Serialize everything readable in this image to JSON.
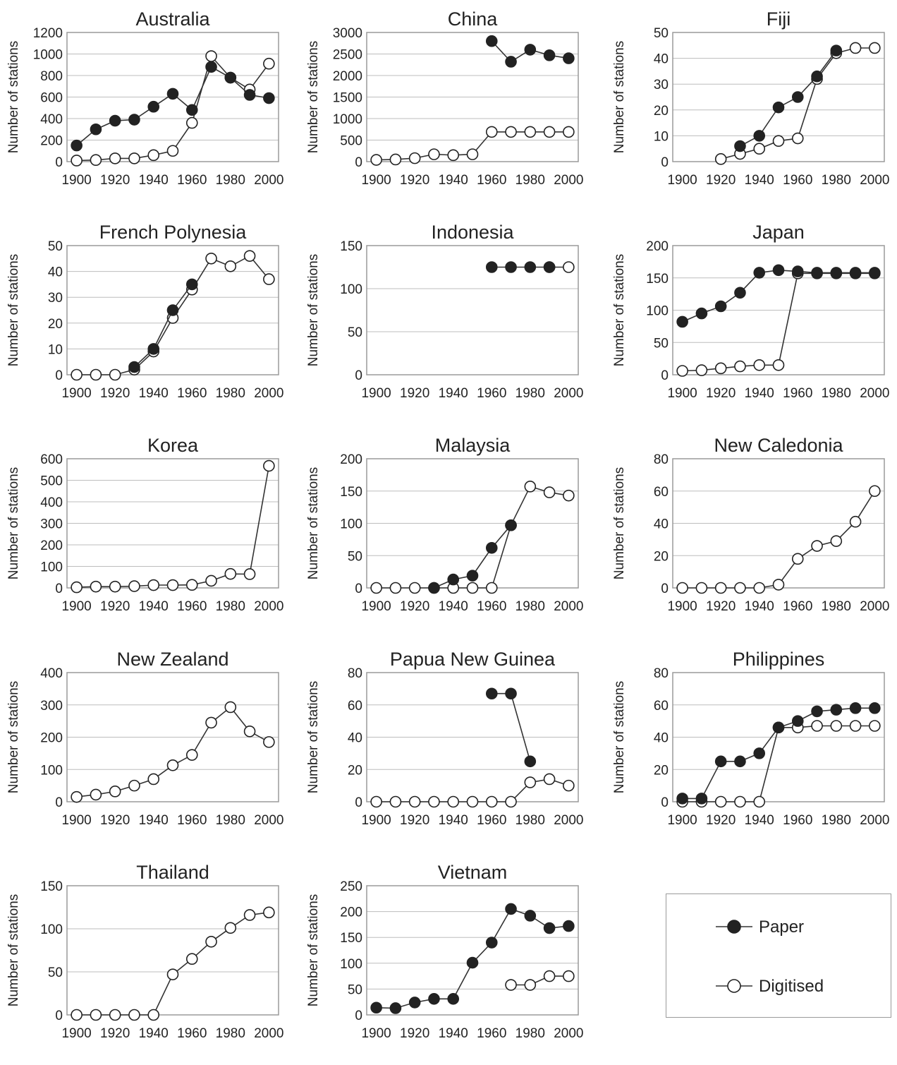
{
  "figure": {
    "ylabel": "Number of stations",
    "colors": {
      "paper": "#222222",
      "digitised": "#ffffff",
      "line": "#333333",
      "grid": "#bdbdbd",
      "frame": "#9a9a9a"
    }
  },
  "legend": {
    "paper_label": "Paper",
    "digitised_label": "Digitised"
  },
  "chart_data": [
    {
      "type": "line",
      "title": "Australia",
      "xlabel": "",
      "ylabel": "Number of stations",
      "xticks": [
        1900,
        1920,
        1940,
        1960,
        1980,
        2000
      ],
      "xlim": [
        1895,
        2005
      ],
      "yticks": [
        0,
        200,
        400,
        600,
        800,
        1000,
        1200
      ],
      "ylim": [
        0,
        1200
      ],
      "series": [
        {
          "name": "Paper",
          "style": "filled",
          "x": [
            1900,
            1910,
            1920,
            1930,
            1940,
            1950,
            1960,
            1970,
            1980,
            1990,
            2000
          ],
          "y": [
            150,
            300,
            380,
            390,
            510,
            630,
            480,
            880,
            780,
            620,
            590
          ]
        },
        {
          "name": "Digitised",
          "style": "open",
          "x": [
            1900,
            1910,
            1920,
            1930,
            1940,
            1950,
            1960,
            1970,
            1980,
            1990,
            2000
          ],
          "y": [
            10,
            15,
            30,
            30,
            60,
            100,
            360,
            980,
            780,
            670,
            910
          ]
        }
      ]
    },
    {
      "type": "line",
      "title": "China",
      "xlabel": "",
      "ylabel": "Number of stations",
      "xticks": [
        1900,
        1920,
        1940,
        1960,
        1980,
        2000
      ],
      "xlim": [
        1895,
        2005
      ],
      "yticks": [
        0,
        500,
        1000,
        1500,
        2000,
        2500,
        3000
      ],
      "ylim": [
        0,
        3000
      ],
      "series": [
        {
          "name": "Paper",
          "style": "filled",
          "x": [
            1960,
            1970,
            1980,
            1990,
            2000
          ],
          "y": [
            2800,
            2320,
            2600,
            2470,
            2400
          ]
        },
        {
          "name": "Digitised",
          "style": "open",
          "x": [
            1900,
            1910,
            1920,
            1930,
            1940,
            1950,
            1960,
            1970,
            1980,
            1990,
            2000
          ],
          "y": [
            40,
            50,
            80,
            170,
            150,
            170,
            690,
            690,
            690,
            690,
            690
          ]
        }
      ]
    },
    {
      "type": "line",
      "title": "Fiji",
      "xlabel": "",
      "ylabel": "Number of stations",
      "xticks": [
        1900,
        1920,
        1940,
        1960,
        1980,
        2000
      ],
      "xlim": [
        1895,
        2005
      ],
      "yticks": [
        0,
        10,
        20,
        30,
        40,
        50
      ],
      "ylim": [
        0,
        50
      ],
      "series": [
        {
          "name": "Paper",
          "style": "filled",
          "x": [
            1930,
            1940,
            1950,
            1960,
            1970,
            1980
          ],
          "y": [
            6,
            10,
            21,
            25,
            33,
            43
          ]
        },
        {
          "name": "Digitised",
          "style": "open",
          "x": [
            1920,
            1930,
            1940,
            1950,
            1960,
            1970,
            1980,
            1990,
            2000
          ],
          "y": [
            1,
            3,
            5,
            8,
            9,
            32,
            42,
            44,
            44
          ]
        }
      ]
    },
    {
      "type": "line",
      "title": "French Polynesia",
      "xlabel": "",
      "ylabel": "Number of stations",
      "xticks": [
        1900,
        1920,
        1940,
        1960,
        1980,
        2000
      ],
      "xlim": [
        1895,
        2005
      ],
      "yticks": [
        0,
        10,
        20,
        30,
        40,
        50
      ],
      "ylim": [
        0,
        50
      ],
      "series": [
        {
          "name": "Paper",
          "style": "filled",
          "x": [
            1930,
            1940,
            1950,
            1960
          ],
          "y": [
            3,
            10,
            25,
            35
          ]
        },
        {
          "name": "Digitised",
          "style": "open",
          "x": [
            1900,
            1910,
            1920,
            1930,
            1940,
            1950,
            1960,
            1970,
            1980,
            1990,
            2000
          ],
          "y": [
            0,
            0,
            0,
            2,
            9,
            22,
            33,
            45,
            42,
            46,
            37
          ]
        }
      ]
    },
    {
      "type": "line",
      "title": "Indonesia",
      "xlabel": "",
      "ylabel": "Number of stations",
      "xticks": [
        1900,
        1920,
        1940,
        1960,
        1980,
        2000
      ],
      "xlim": [
        1895,
        2005
      ],
      "yticks": [
        0,
        50,
        100,
        150
      ],
      "ylim": [
        0,
        150
      ],
      "series": [
        {
          "name": "Paper",
          "style": "filled",
          "x": [
            1960,
            1970,
            1980,
            1990
          ],
          "y": [
            125,
            125,
            125,
            125
          ]
        },
        {
          "name": "Digitised",
          "style": "open",
          "x": [
            1990,
            2000
          ],
          "y": [
            125,
            125
          ]
        }
      ]
    },
    {
      "type": "line",
      "title": "Japan",
      "xlabel": "",
      "ylabel": "Number of stations",
      "xticks": [
        1900,
        1920,
        1940,
        1960,
        1980,
        2000
      ],
      "xlim": [
        1895,
        2005
      ],
      "yticks": [
        0,
        50,
        100,
        150,
        200
      ],
      "ylim": [
        0,
        200
      ],
      "series": [
        {
          "name": "Paper",
          "style": "filled",
          "x": [
            1900,
            1910,
            1920,
            1930,
            1940,
            1950,
            1960,
            1970,
            1980,
            1990,
            2000
          ],
          "y": [
            82,
            95,
            106,
            127,
            158,
            162,
            160,
            158,
            158,
            158,
            158
          ]
        },
        {
          "name": "Digitised",
          "style": "open",
          "x": [
            1900,
            1910,
            1920,
            1930,
            1940,
            1950,
            1960,
            1970,
            1980,
            1990,
            2000
          ],
          "y": [
            6,
            7,
            10,
            13,
            15,
            15,
            157,
            157,
            157,
            157,
            157
          ]
        }
      ]
    },
    {
      "type": "line",
      "title": "Korea",
      "xlabel": "",
      "ylabel": "Number of stations",
      "xticks": [
        1900,
        1920,
        1940,
        1960,
        1980,
        2000
      ],
      "xlim": [
        1895,
        2005
      ],
      "yticks": [
        0,
        100,
        200,
        300,
        400,
        500,
        600
      ],
      "ylim": [
        0,
        600
      ],
      "series": [
        {
          "name": "Digitised",
          "style": "open",
          "x": [
            1900,
            1910,
            1920,
            1930,
            1940,
            1950,
            1960,
            1970,
            1980,
            1990,
            2000
          ],
          "y": [
            3,
            6,
            6,
            8,
            13,
            13,
            14,
            33,
            65,
            64,
            567
          ]
        }
      ]
    },
    {
      "type": "line",
      "title": "Malaysia",
      "xlabel": "",
      "ylabel": "Number of stations",
      "xticks": [
        1900,
        1920,
        1940,
        1960,
        1980,
        2000
      ],
      "xlim": [
        1895,
        2005
      ],
      "yticks": [
        0,
        50,
        100,
        150,
        200
      ],
      "ylim": [
        0,
        200
      ],
      "series": [
        {
          "name": "Paper",
          "style": "filled",
          "x": [
            1930,
            1940,
            1950,
            1960,
            1970
          ],
          "y": [
            0,
            13,
            19,
            62,
            97
          ]
        },
        {
          "name": "Digitised",
          "style": "open",
          "x": [
            1900,
            1910,
            1920,
            1930,
            1940,
            1950,
            1960,
            1970,
            1980,
            1990,
            2000
          ],
          "y": [
            0,
            0,
            0,
            0,
            0,
            0,
            0,
            97,
            157,
            148,
            143
          ]
        }
      ]
    },
    {
      "type": "line",
      "title": "New Caledonia",
      "xlabel": "",
      "ylabel": "Number of stations",
      "xticks": [
        1900,
        1920,
        1940,
        1960,
        1980,
        2000
      ],
      "xlim": [
        1895,
        2005
      ],
      "yticks": [
        0,
        20,
        40,
        60,
        80
      ],
      "ylim": [
        0,
        80
      ],
      "series": [
        {
          "name": "Digitised",
          "style": "open",
          "x": [
            1900,
            1910,
            1920,
            1930,
            1940,
            1950,
            1960,
            1970,
            1980,
            1990,
            2000
          ],
          "y": [
            0,
            0,
            0,
            0,
            0,
            2,
            18,
            26,
            29,
            41,
            60
          ]
        }
      ]
    },
    {
      "type": "line",
      "title": "New Zealand",
      "xlabel": "",
      "ylabel": "Number of stations",
      "xticks": [
        1900,
        1920,
        1940,
        1960,
        1980,
        2000
      ],
      "xlim": [
        1895,
        2005
      ],
      "yticks": [
        0,
        100,
        200,
        300,
        400
      ],
      "ylim": [
        0,
        400
      ],
      "series": [
        {
          "name": "Digitised",
          "style": "open",
          "x": [
            1900,
            1910,
            1920,
            1930,
            1940,
            1950,
            1960,
            1970,
            1980,
            1990,
            2000
          ],
          "y": [
            15,
            22,
            32,
            50,
            70,
            113,
            145,
            245,
            293,
            218,
            185
          ]
        }
      ]
    },
    {
      "type": "line",
      "title": "Papua New Guinea",
      "xlabel": "",
      "ylabel": "Number of stations",
      "xticks": [
        1900,
        1920,
        1940,
        1960,
        1980,
        2000
      ],
      "xlim": [
        1895,
        2005
      ],
      "yticks": [
        0,
        20,
        40,
        60,
        80
      ],
      "ylim": [
        0,
        80
      ],
      "series": [
        {
          "name": "Paper",
          "style": "filled",
          "x": [
            1960,
            1970,
            1980
          ],
          "y": [
            67,
            67,
            25
          ]
        },
        {
          "name": "Digitised",
          "style": "open",
          "x": [
            1900,
            1910,
            1920,
            1930,
            1940,
            1950,
            1960,
            1970,
            1980,
            1990,
            2000
          ],
          "y": [
            0,
            0,
            0,
            0,
            0,
            0,
            0,
            0,
            12,
            14,
            10
          ]
        }
      ]
    },
    {
      "type": "line",
      "title": "Philippines",
      "xlabel": "",
      "ylabel": "Number of stations",
      "xticks": [
        1900,
        1920,
        1940,
        1960,
        1980,
        2000
      ],
      "xlim": [
        1895,
        2005
      ],
      "yticks": [
        0,
        20,
        40,
        60,
        80
      ],
      "ylim": [
        0,
        80
      ],
      "series": [
        {
          "name": "Paper",
          "style": "filled",
          "x": [
            1900,
            1910,
            1920,
            1930,
            1940,
            1950,
            1960,
            1970,
            1980,
            1990,
            2000
          ],
          "y": [
            2,
            2,
            25,
            25,
            30,
            46,
            50,
            56,
            57,
            58,
            58
          ]
        },
        {
          "name": "Digitised",
          "style": "open",
          "x": [
            1900,
            1910,
            1920,
            1930,
            1940,
            1950,
            1960,
            1970,
            1980,
            1990,
            2000
          ],
          "y": [
            0,
            0,
            0,
            0,
            0,
            46,
            46,
            47,
            47,
            47,
            47
          ]
        }
      ]
    },
    {
      "type": "line",
      "title": "Thailand",
      "xlabel": "",
      "ylabel": "Number of stations",
      "xticks": [
        1900,
        1920,
        1940,
        1960,
        1980,
        2000
      ],
      "xlim": [
        1895,
        2005
      ],
      "yticks": [
        0,
        50,
        100,
        150
      ],
      "ylim": [
        0,
        150
      ],
      "series": [
        {
          "name": "Digitised",
          "style": "open",
          "x": [
            1900,
            1910,
            1920,
            1930,
            1940,
            1950,
            1960,
            1970,
            1980,
            1990,
            2000
          ],
          "y": [
            0,
            0,
            0,
            0,
            0,
            47,
            65,
            85,
            101,
            116,
            119
          ]
        }
      ]
    },
    {
      "type": "line",
      "title": "Vietnam",
      "xlabel": "",
      "ylabel": "Number of stations",
      "xticks": [
        1900,
        1920,
        1940,
        1960,
        1980,
        2000
      ],
      "xlim": [
        1895,
        2005
      ],
      "yticks": [
        0,
        50,
        100,
        150,
        200,
        250
      ],
      "ylim": [
        0,
        250
      ],
      "series": [
        {
          "name": "Paper",
          "style": "filled",
          "x": [
            1900,
            1910,
            1920,
            1930,
            1940,
            1950,
            1960,
            1970,
            1980,
            1990,
            2000
          ],
          "y": [
            14,
            13,
            24,
            31,
            31,
            101,
            140,
            205,
            192,
            168,
            172
          ]
        },
        {
          "name": "Digitised",
          "style": "open",
          "x": [
            1970,
            1980,
            1990,
            2000
          ],
          "y": [
            58,
            58,
            75,
            75
          ]
        }
      ]
    }
  ]
}
